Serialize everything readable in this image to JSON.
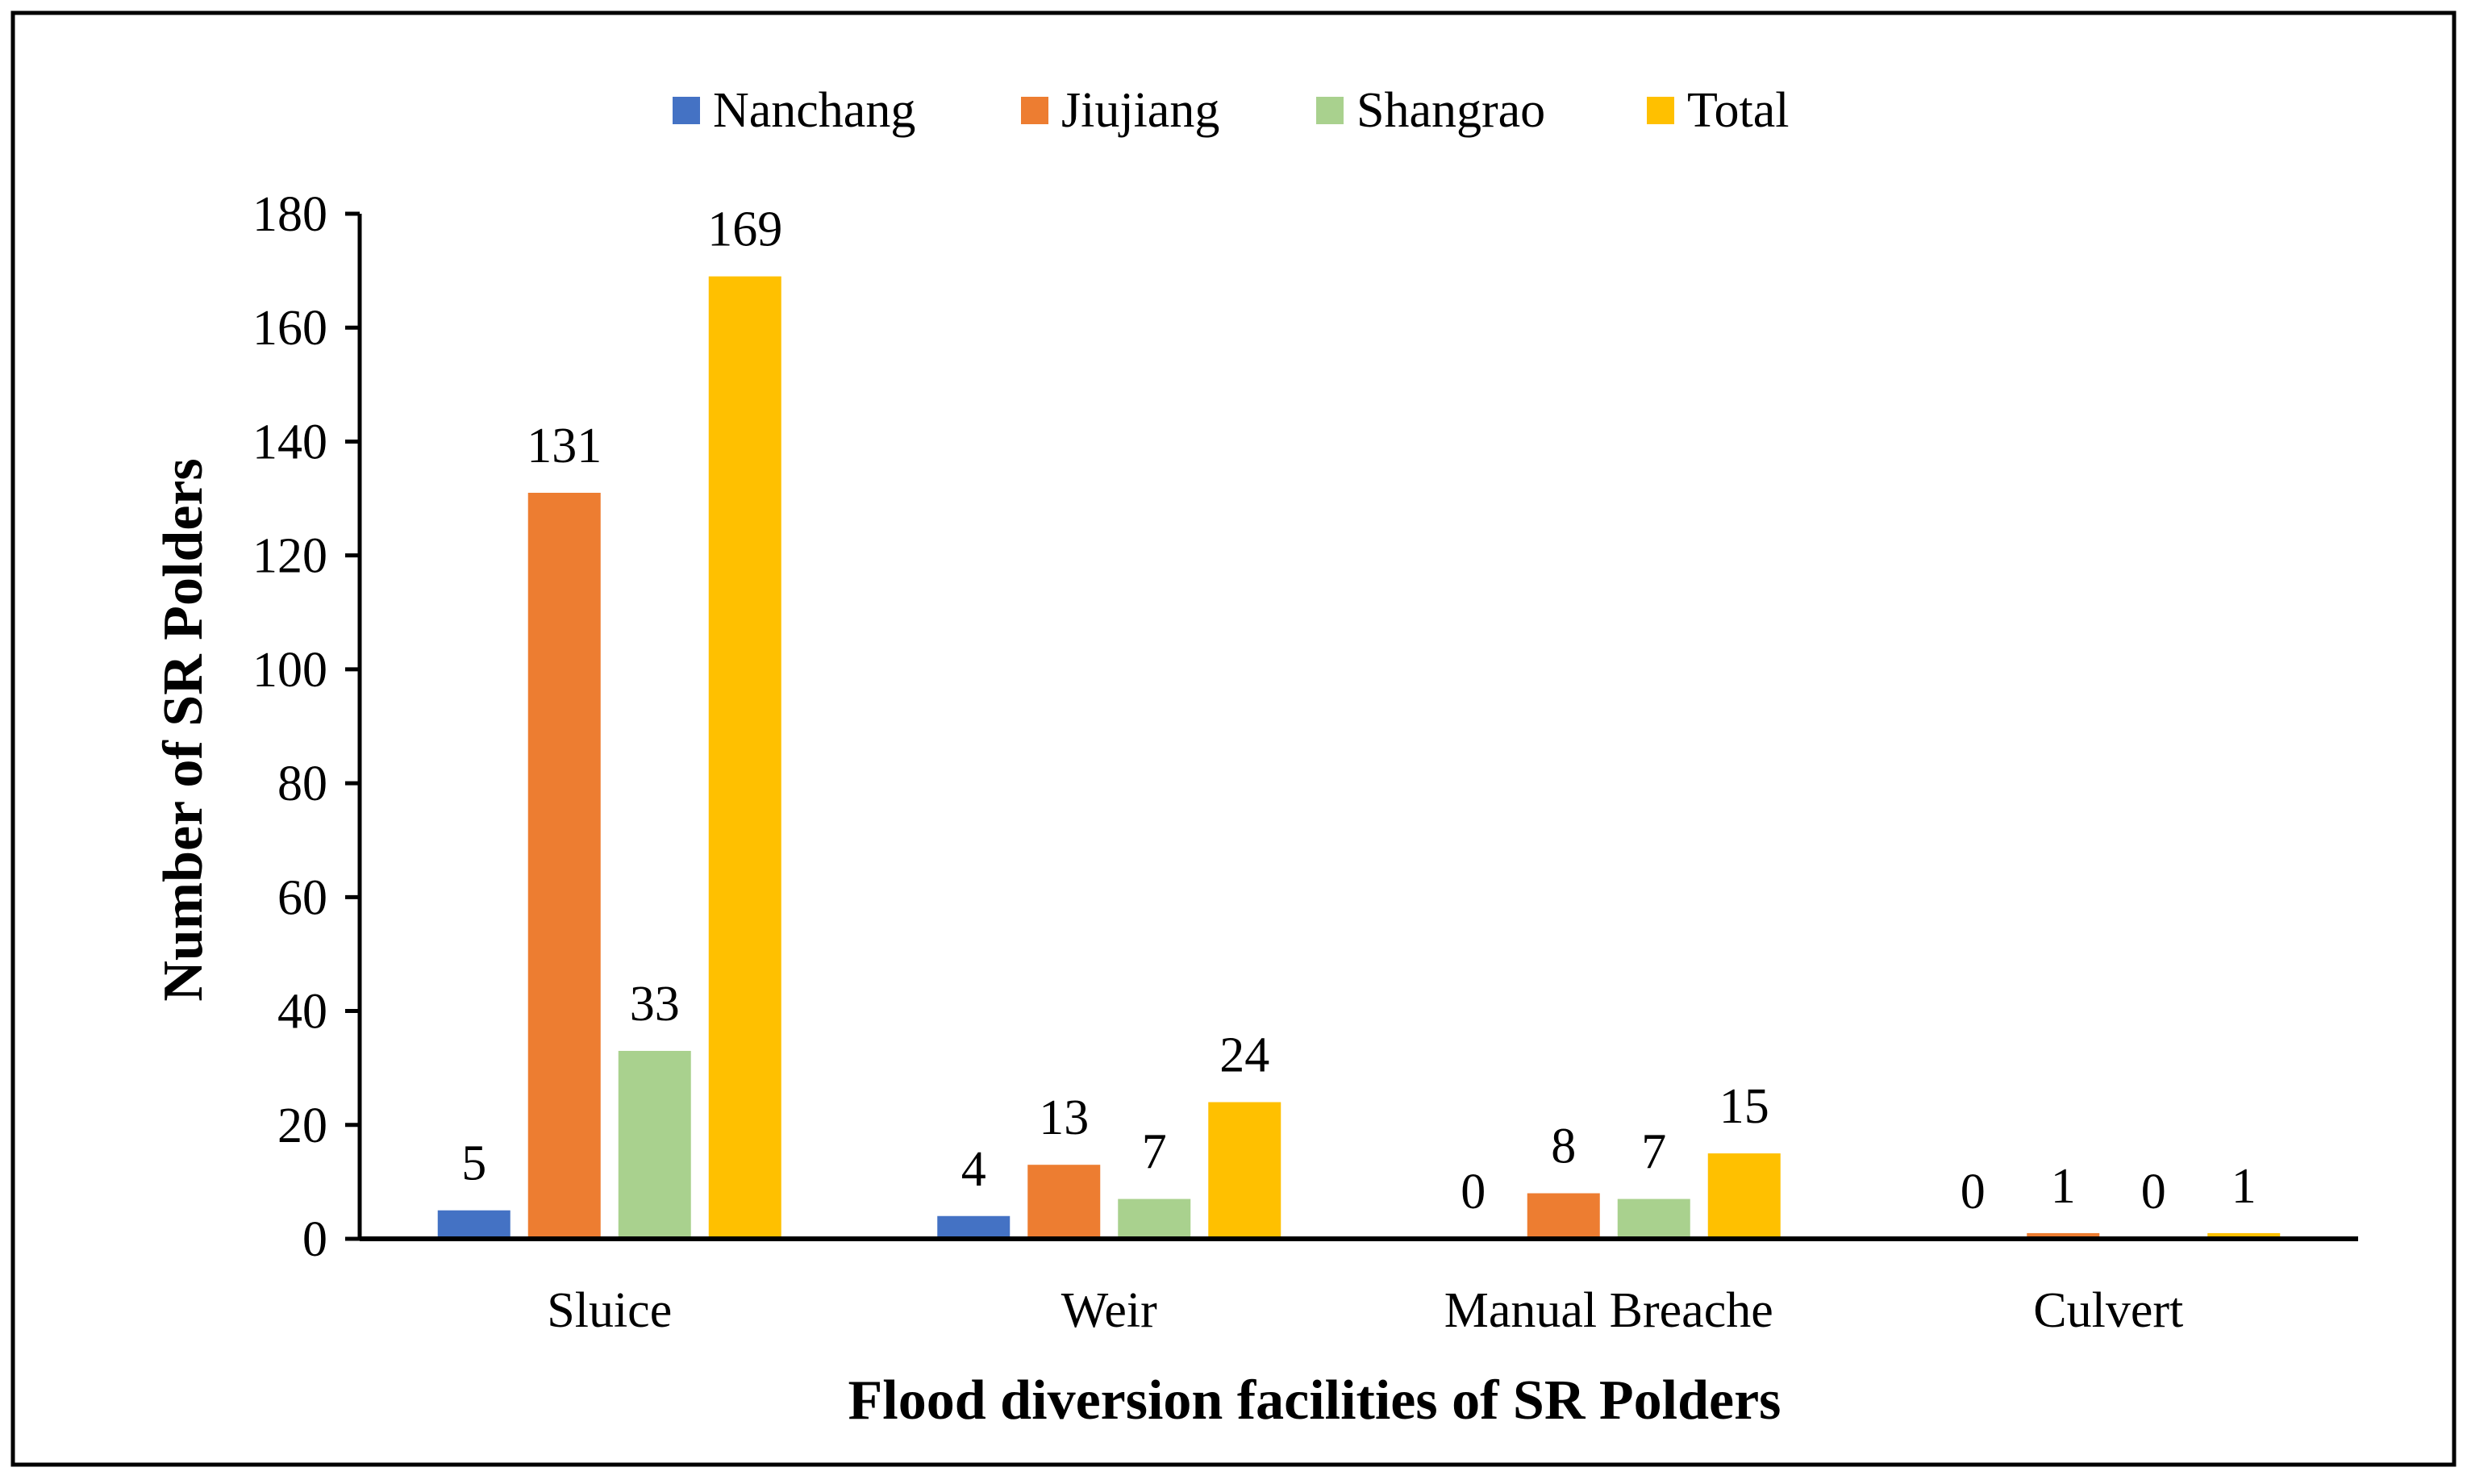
{
  "chart_data": {
    "type": "bar",
    "title": "",
    "xlabel": "Flood diversion facilities of SR Polders",
    "ylabel": "Number of SR Polders",
    "categories": [
      "Sluice",
      "Weir",
      "Manual Breache",
      "Culvert"
    ],
    "series": [
      {
        "name": "Nanchang",
        "color": "#4472C4",
        "values": [
          5,
          4,
          0,
          0
        ]
      },
      {
        "name": "Jiujiang",
        "color": "#ED7D31",
        "values": [
          131,
          13,
          8,
          1
        ]
      },
      {
        "name": "Shangrao",
        "color": "#A9D18E",
        "values": [
          33,
          7,
          7,
          0
        ]
      },
      {
        "name": "Total",
        "color": "#FFC000",
        "values": [
          169,
          24,
          15,
          1
        ]
      }
    ],
    "ylim": [
      0,
      180
    ],
    "yticks": [
      "0",
      "20",
      "40",
      "60",
      "80",
      "100",
      "120",
      "140",
      "160",
      "180"
    ],
    "legend_position": "top-center",
    "grid": false
  }
}
